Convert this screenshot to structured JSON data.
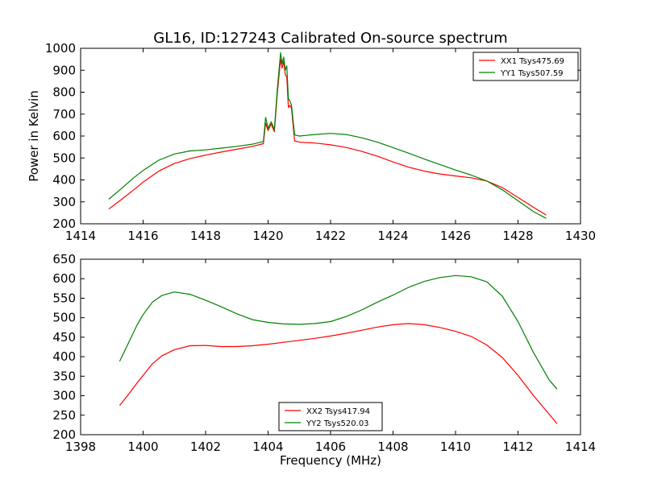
{
  "title": "GL16, ID:127243 Calibrated On-source spectrum",
  "chart_data": [
    {
      "type": "line",
      "title": "GL16, ID:127243 Calibrated On-source spectrum",
      "xlabel": "",
      "ylabel": "Power in Kelvin",
      "xlim": [
        1414,
        1430
      ],
      "ylim": [
        200,
        1000
      ],
      "xticks": [
        "1414",
        "1416",
        "1418",
        "1420",
        "1422",
        "1424",
        "1426",
        "1428",
        "1430"
      ],
      "yticks": [
        "200",
        "300",
        "400",
        "500",
        "600",
        "700",
        "800",
        "900",
        "1000"
      ],
      "legend": "top-right",
      "grid": false,
      "series": [
        {
          "name": "XX1 Tsys475.69",
          "color": "#ff0000",
          "x": [
            1414.9,
            1415.3,
            1415.7,
            1416.0,
            1416.5,
            1417.0,
            1417.5,
            1418.0,
            1418.5,
            1419.0,
            1419.5,
            1419.85,
            1419.92,
            1420.0,
            1420.1,
            1420.2,
            1420.3,
            1420.4,
            1420.45,
            1420.5,
            1420.55,
            1420.6,
            1420.65,
            1420.7,
            1420.75,
            1420.85,
            1421.0,
            1421.5,
            1422.0,
            1422.5,
            1423.0,
            1423.5,
            1424.0,
            1424.5,
            1425.0,
            1425.5,
            1426.0,
            1426.5,
            1427.0,
            1427.5,
            1428.0,
            1428.5,
            1428.9
          ],
          "y": [
            267,
            310,
            355,
            390,
            440,
            475,
            497,
            513,
            527,
            540,
            553,
            565,
            660,
            625,
            655,
            620,
            800,
            950,
            910,
            940,
            880,
            870,
            730,
            740,
            725,
            578,
            572,
            568,
            560,
            548,
            530,
            508,
            482,
            458,
            440,
            427,
            418,
            410,
            395,
            365,
            320,
            275,
            240
          ]
        },
        {
          "name": "YY1 Tsys507.59",
          "color": "#008000",
          "x": [
            1414.9,
            1415.3,
            1415.7,
            1416.0,
            1416.5,
            1417.0,
            1417.5,
            1418.0,
            1418.5,
            1419.0,
            1419.5,
            1419.85,
            1419.92,
            1420.0,
            1420.1,
            1420.2,
            1420.3,
            1420.4,
            1420.45,
            1420.5,
            1420.55,
            1420.6,
            1420.65,
            1420.7,
            1420.75,
            1420.85,
            1421.0,
            1421.5,
            1422.0,
            1422.5,
            1423.0,
            1423.5,
            1424.0,
            1424.5,
            1425.0,
            1425.5,
            1426.0,
            1426.5,
            1427.0,
            1427.5,
            1428.0,
            1428.5,
            1428.9
          ],
          "y": [
            312,
            360,
            410,
            443,
            490,
            518,
            532,
            537,
            545,
            553,
            563,
            575,
            685,
            635,
            665,
            630,
            820,
            980,
            930,
            960,
            900,
            920,
            770,
            760,
            740,
            605,
            600,
            607,
            612,
            607,
            592,
            572,
            547,
            522,
            495,
            470,
            445,
            422,
            395,
            355,
            305,
            255,
            225
          ]
        }
      ]
    },
    {
      "type": "line",
      "title": "",
      "xlabel": "Frequency (MHz)",
      "ylabel": "",
      "xlim": [
        1398,
        1414
      ],
      "ylim": [
        200,
        650
      ],
      "xticks": [
        "1398",
        "1400",
        "1402",
        "1404",
        "1406",
        "1408",
        "1410",
        "1412",
        "1414"
      ],
      "yticks": [
        "200",
        "250",
        "300",
        "350",
        "400",
        "450",
        "500",
        "550",
        "600",
        "650"
      ],
      "legend": "bottom-center",
      "grid": false,
      "series": [
        {
          "name": "XX2 Tsys417.94",
          "color": "#ff0000",
          "x": [
            1399.25,
            1399.5,
            1399.8,
            1400.0,
            1400.3,
            1400.6,
            1401.0,
            1401.5,
            1402.0,
            1402.5,
            1403.0,
            1403.5,
            1404.0,
            1404.5,
            1405.0,
            1405.5,
            1406.0,
            1406.5,
            1407.0,
            1407.5,
            1408.0,
            1408.5,
            1409.0,
            1409.5,
            1410.0,
            1410.5,
            1411.0,
            1411.5,
            1412.0,
            1412.5,
            1413.0,
            1413.25
          ],
          "y": [
            275,
            300,
            332,
            352,
            382,
            402,
            418,
            428,
            429,
            426,
            426,
            428,
            432,
            437,
            442,
            447,
            453,
            460,
            468,
            476,
            482,
            485,
            482,
            475,
            465,
            452,
            430,
            398,
            352,
            300,
            252,
            228
          ]
        },
        {
          "name": "YY2 Tsys520.03",
          "color": "#008000",
          "x": [
            1399.25,
            1399.5,
            1399.8,
            1400.0,
            1400.3,
            1400.6,
            1401.0,
            1401.5,
            1402.0,
            1402.5,
            1403.0,
            1403.5,
            1404.0,
            1404.5,
            1405.0,
            1405.5,
            1406.0,
            1406.5,
            1407.0,
            1407.5,
            1408.0,
            1408.5,
            1409.0,
            1409.5,
            1410.0,
            1410.5,
            1411.0,
            1411.5,
            1412.0,
            1412.5,
            1413.0,
            1413.25
          ],
          "y": [
            388,
            430,
            480,
            508,
            540,
            557,
            566,
            560,
            545,
            528,
            510,
            495,
            488,
            484,
            483,
            485,
            490,
            503,
            520,
            540,
            558,
            578,
            593,
            603,
            608,
            605,
            592,
            555,
            490,
            410,
            340,
            317
          ]
        }
      ]
    }
  ]
}
